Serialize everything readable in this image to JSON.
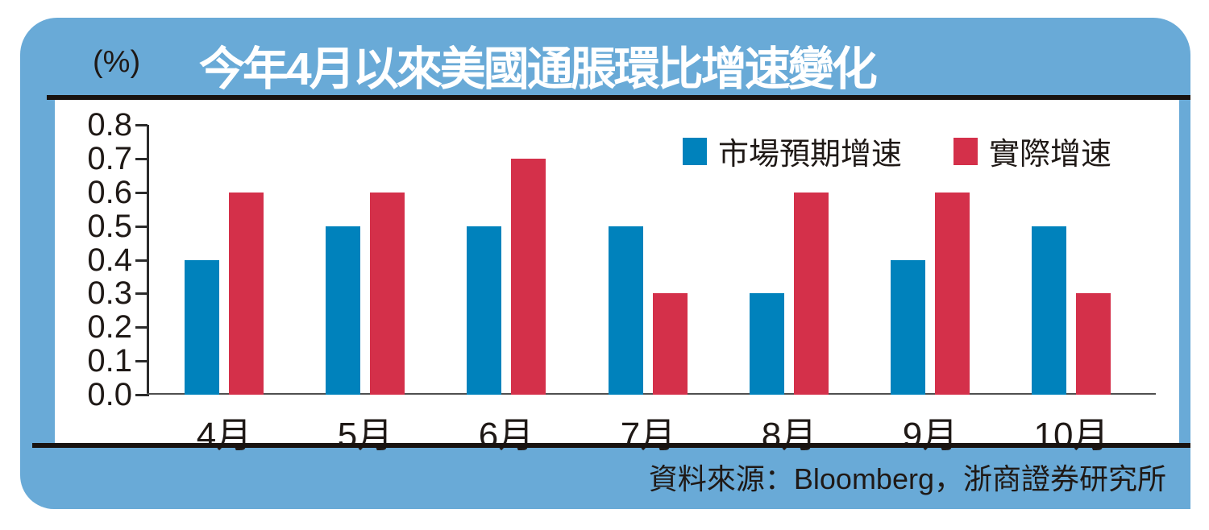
{
  "chart": {
    "unit_label": "(%)",
    "title": "今年4月以來美國通脹環比增速變化",
    "legend": [
      {
        "label": "市場預期增速",
        "color": "#0082bc"
      },
      {
        "label": "實際增速",
        "color": "#d4304a"
      }
    ]
  },
  "footer": {
    "source": "資料來源：Bloomberg，浙商證券研究所"
  },
  "colors": {
    "panel_blue": "#69aad7",
    "bar_blue": "#0082bc",
    "bar_red": "#d4304a",
    "text_dark": "#1f1916",
    "rule_black": "#191310",
    "axis_gray": "#2b2b2b",
    "baseline_gray": "#4f4f4f"
  },
  "chart_data": {
    "type": "bar",
    "title": "今年4月以來美國通脹環比增速變化",
    "categories": [
      "4月",
      "5月",
      "6月",
      "7月",
      "8月",
      "9月",
      "10月"
    ],
    "series": [
      {
        "name": "市場預期增速",
        "color": "#0082bc",
        "values": [
          0.4,
          0.5,
          0.5,
          0.5,
          0.3,
          0.4,
          0.5
        ]
      },
      {
        "name": "實際增速",
        "color": "#d4304a",
        "values": [
          0.6,
          0.6,
          0.7,
          0.3,
          0.6,
          0.6,
          0.3
        ]
      }
    ],
    "xlabel": "",
    "ylabel": "(%)",
    "ylim": [
      0,
      0.8
    ],
    "ytick_step": 0.1,
    "ytick_labels": [
      "0.0",
      "0.1",
      "0.2",
      "0.3",
      "0.4",
      "0.5",
      "0.6",
      "0.7",
      "0.8"
    ],
    "grid": false,
    "legend_position": "top-right"
  }
}
